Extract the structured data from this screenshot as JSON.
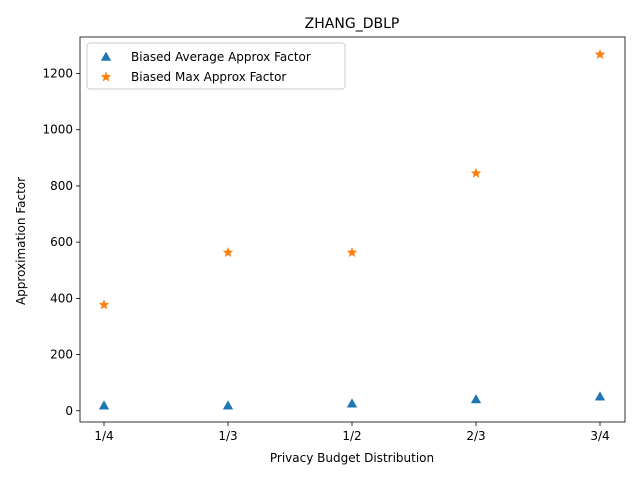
{
  "chart_data": {
    "type": "scatter",
    "title": "ZHANG_DBLP",
    "xlabel": "Privacy Budget Distribution",
    "ylabel": "Approximation Factor",
    "categories": [
      "1/4",
      "1/3",
      "1/2",
      "2/3",
      "3/4"
    ],
    "yticks": [
      0,
      200,
      400,
      600,
      800,
      1000,
      1200
    ],
    "ylim": [
      -40,
      1330
    ],
    "grid": false,
    "legend_position": "top-left",
    "series": [
      {
        "name": "Biased Average Approx Factor",
        "marker": "triangle",
        "color": "#1f77b4",
        "values": [
          18,
          18,
          25,
          40,
          50
        ]
      },
      {
        "name": "Biased Max Approx Factor",
        "marker": "star",
        "color": "#ff7f0e",
        "values": [
          377,
          563,
          563,
          845,
          1268
        ]
      }
    ]
  }
}
